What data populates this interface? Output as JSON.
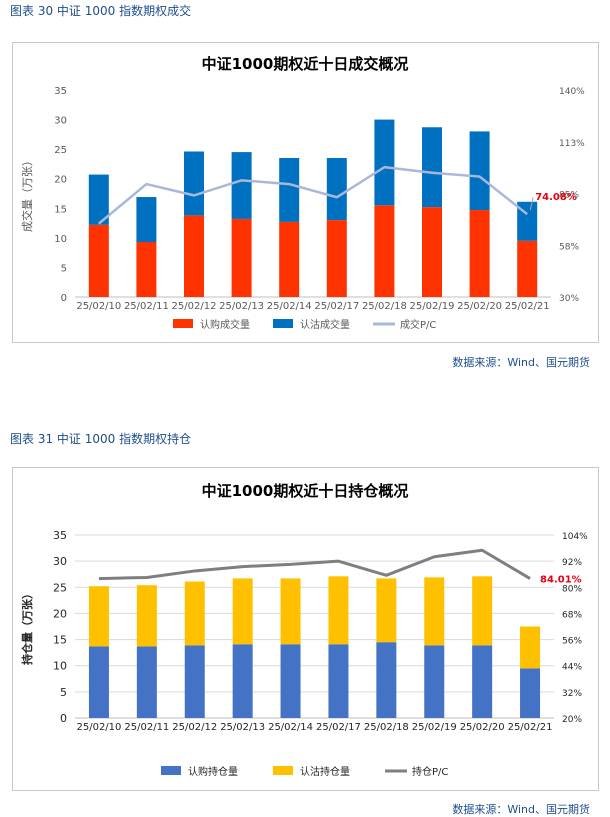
{
  "figure1": {
    "caption": "图表 30  中证 1000 指数期权成交",
    "source": "数据来源：Wind、国元期货"
  },
  "figure2": {
    "caption": "图表 31  中证 1000 指数期权持仓",
    "source": "数据来源：Wind、国元期货"
  },
  "colors": {
    "call_volume": "#ff3300",
    "put_volume": "#0070c0",
    "pc_volume": "#a9b7d9",
    "call_oi": "#4472c4",
    "put_oi": "#ffc000",
    "pc_oi": "#7f7f7f",
    "highlight": "#e60012"
  },
  "chart_data": [
    {
      "type": "bar",
      "stacked": true,
      "title": "中证1000期权近十日成交概况",
      "ylabel": "成交量（万张）",
      "y2label": "",
      "categories": [
        "25/02/10",
        "25/02/11",
        "25/02/12",
        "25/02/13",
        "25/02/14",
        "25/02/17",
        "25/02/18",
        "25/02/19",
        "25/02/20",
        "25/02/21"
      ],
      "ylim": [
        0,
        35
      ],
      "yticks": [
        "0",
        "5",
        "10",
        "15",
        "20",
        "25",
        "30",
        "35"
      ],
      "y2lim": [
        30,
        140
      ],
      "y2ticks": [
        "30%",
        "58%",
        "85%",
        "113%",
        "140%"
      ],
      "grid": false,
      "legend_position": "bottom",
      "series": [
        {
          "name": "认购成交量",
          "type": "bar",
          "values": [
            12.2,
            9.3,
            13.8,
            13.2,
            12.7,
            13.0,
            15.5,
            15.2,
            14.7,
            9.5
          ]
        },
        {
          "name": "认沽成交量",
          "type": "bar",
          "values": [
            8.5,
            7.6,
            10.8,
            11.3,
            10.8,
            10.5,
            14.5,
            13.5,
            13.3,
            6.6
          ]
        },
        {
          "name": "成交P/C",
          "type": "line",
          "axis": "right",
          "values": [
            69.0,
            90.0,
            84.0,
            92.0,
            90.0,
            83.0,
            99.0,
            96.0,
            94.0,
            74.0
          ]
        }
      ],
      "annotation": "74.08%"
    },
    {
      "type": "bar",
      "stacked": true,
      "title": "中证1000期权近十日持仓概况",
      "ylabel": "持仓量（万张）",
      "y2label": "",
      "categories": [
        "25/02/10",
        "25/02/11",
        "25/02/12",
        "25/02/13",
        "25/02/14",
        "25/02/17",
        "25/02/18",
        "25/02/19",
        "25/02/20",
        "25/02/21"
      ],
      "ylim": [
        0,
        35
      ],
      "yticks": [
        "0",
        "5",
        "10",
        "15",
        "20",
        "25",
        "30",
        "35"
      ],
      "y2lim": [
        20,
        104
      ],
      "y2ticks": [
        "20%",
        "32%",
        "44%",
        "56%",
        "68%",
        "80%",
        "92%",
        "104%"
      ],
      "grid": true,
      "legend_position": "bottom",
      "series": [
        {
          "name": "认购持仓量",
          "type": "bar",
          "values": [
            13.7,
            13.7,
            13.9,
            14.1,
            14.1,
            14.1,
            14.5,
            13.9,
            13.9,
            9.5
          ]
        },
        {
          "name": "认沽持仓量",
          "type": "bar",
          "values": [
            11.5,
            11.7,
            12.2,
            12.6,
            12.6,
            13.0,
            12.2,
            13.0,
            13.2,
            8.0
          ]
        },
        {
          "name": "持仓P/C",
          "type": "line",
          "axis": "right",
          "values": [
            84.0,
            84.5,
            87.5,
            89.5,
            90.5,
            92.0,
            85.5,
            94.0,
            97.0,
            84.0
          ]
        }
      ],
      "annotation": "84.01%"
    }
  ]
}
